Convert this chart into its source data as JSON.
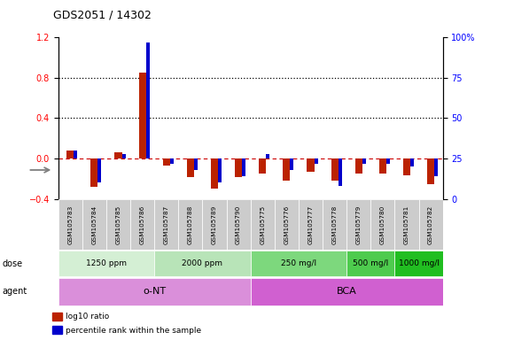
{
  "title": "GDS2051 / 14302",
  "samples": [
    "GSM105783",
    "GSM105784",
    "GSM105785",
    "GSM105786",
    "GSM105787",
    "GSM105788",
    "GSM105789",
    "GSM105790",
    "GSM105775",
    "GSM105776",
    "GSM105777",
    "GSM105778",
    "GSM105779",
    "GSM105780",
    "GSM105781",
    "GSM105782"
  ],
  "log10_ratio": [
    0.08,
    -0.28,
    0.06,
    0.85,
    -0.07,
    -0.18,
    -0.3,
    -0.18,
    -0.15,
    -0.22,
    -0.13,
    -0.22,
    -0.15,
    -0.15,
    -0.17,
    -0.25
  ],
  "percentile_rank": [
    30,
    10,
    28,
    97,
    22,
    18,
    10,
    14,
    28,
    18,
    22,
    8,
    22,
    22,
    20,
    14
  ],
  "ylim": [
    -0.4,
    1.2
  ],
  "yticks_left": [
    -0.4,
    0.0,
    0.4,
    0.8,
    1.2
  ],
  "yticks_right_labels": [
    "0",
    "25",
    "50",
    "75",
    "100%"
  ],
  "hline_y": 0.0,
  "dotted_lines": [
    0.4,
    0.8
  ],
  "dose_groups": [
    {
      "label": "1250 ppm",
      "start": 0,
      "end": 3,
      "color": "#d4efd4"
    },
    {
      "label": "2000 ppm",
      "start": 4,
      "end": 7,
      "color": "#b8e4b8"
    },
    {
      "label": "250 mg/l",
      "start": 8,
      "end": 11,
      "color": "#7dd87d"
    },
    {
      "label": "500 mg/l",
      "start": 12,
      "end": 13,
      "color": "#4ecb4e"
    },
    {
      "label": "1000 mg/l",
      "start": 14,
      "end": 15,
      "color": "#21be21"
    }
  ],
  "agent_groups": [
    {
      "label": "o-NT",
      "start": 0,
      "end": 7,
      "color": "#da8fda"
    },
    {
      "label": "BCA",
      "start": 8,
      "end": 15,
      "color": "#d060d0"
    }
  ],
  "red_bar_width": 0.3,
  "blue_bar_width": 0.15,
  "red_color": "#bb2200",
  "blue_color": "#0000cc",
  "sample_box_color": "#cccccc",
  "legend_items": [
    {
      "color": "#bb2200",
      "label": "log10 ratio"
    },
    {
      "color": "#0000cc",
      "label": "percentile rank within the sample"
    }
  ]
}
